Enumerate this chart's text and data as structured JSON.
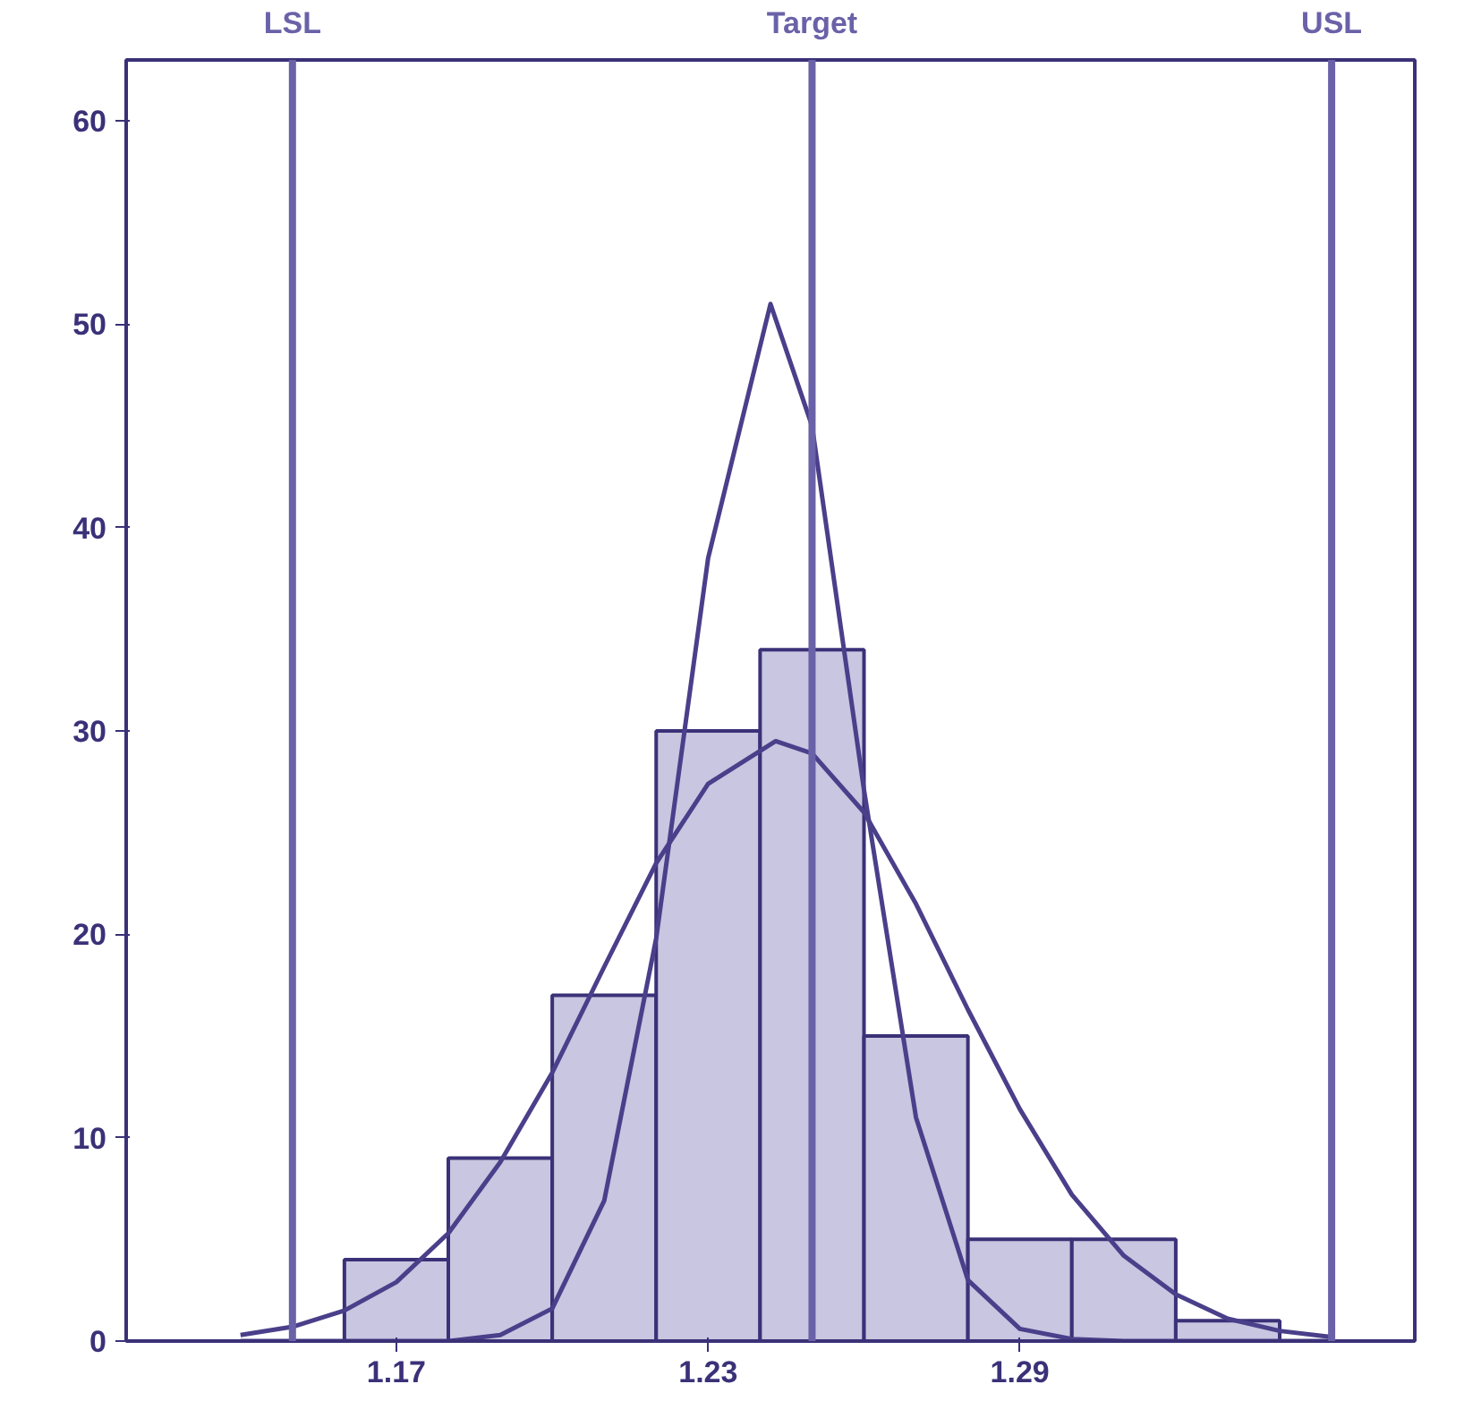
{
  "chart_data": {
    "type": "histogram",
    "bins": [
      1.16,
      1.18,
      1.2,
      1.22,
      1.24,
      1.26,
      1.28,
      1.3,
      1.32,
      1.34
    ],
    "values": [
      4,
      9,
      17,
      30,
      34,
      15,
      5,
      5,
      1
    ],
    "color": "#c8c6e0",
    "series": [
      {
        "type": "line",
        "color": "#4a3f8a",
        "x": [
          1.14,
          1.15,
          1.16,
          1.17,
          1.18,
          1.19,
          1.2,
          1.21,
          1.22,
          1.23,
          1.242,
          1.25,
          1.26,
          1.27,
          1.28,
          1.29,
          1.3,
          1.31,
          1.32,
          1.33,
          1.34,
          1.35
        ],
        "values": [
          0,
          0,
          0,
          0,
          0,
          0.3,
          1.6,
          6.9,
          19.8,
          38.5,
          51,
          45,
          27.1,
          11,
          3,
          0.6,
          0.1,
          0,
          0,
          0,
          0,
          0
        ]
      },
      {
        "type": "line",
        "color": "#4a3f8a",
        "x": [
          1.14,
          1.15,
          1.16,
          1.17,
          1.18,
          1.19,
          1.2,
          1.21,
          1.22,
          1.23,
          1.243,
          1.25,
          1.26,
          1.27,
          1.28,
          1.29,
          1.3,
          1.31,
          1.32,
          1.33,
          1.34,
          1.35
        ],
        "values": [
          0.3,
          0.7,
          1.5,
          2.9,
          5.3,
          8.8,
          13.2,
          18.4,
          23.5,
          27.4,
          29.5,
          28.9,
          26,
          21.5,
          16.3,
          11.4,
          7.2,
          4.2,
          2.3,
          1.1,
          0.5,
          0.2
        ]
      }
    ],
    "ref_lines": [
      {
        "axis": "x",
        "value": 1.15,
        "label": "LSL",
        "color": "#6a62a8"
      },
      {
        "axis": "x",
        "value": 1.25,
        "label": "Target",
        "color": "#6a62a8"
      },
      {
        "axis": "x",
        "value": 1.35,
        "label": "USL",
        "color": "#6a62a8"
      }
    ],
    "xlim": [
      1.118,
      1.366
    ],
    "xticks": [
      1.17,
      1.23,
      1.29
    ],
    "ylim": [
      0,
      63
    ],
    "yticks": [
      0,
      10,
      20,
      30,
      40,
      50,
      60
    ],
    "grid": false
  }
}
